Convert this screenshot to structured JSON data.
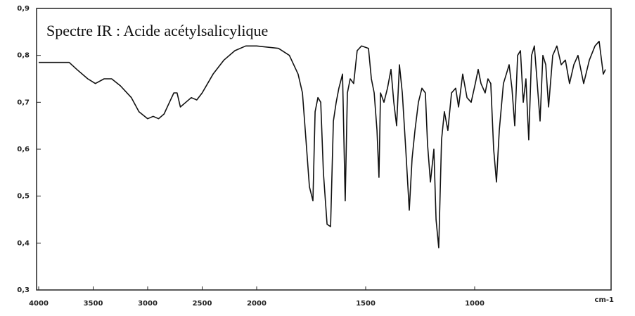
{
  "chart_data": {
    "type": "line",
    "annotation": "Spectre IR : Acide acétylsalicylique",
    "x_unit": "cm-1",
    "xlim": [
      4000,
      400
    ],
    "xticks": [
      4000,
      3500,
      3000,
      2500,
      2000,
      1500,
      1000
    ],
    "ylim": [
      0.3,
      0.9
    ],
    "yticks": [
      {
        "value": 0.3,
        "label": "0,3"
      },
      {
        "value": 0.4,
        "label": "0,4"
      },
      {
        "value": 0.5,
        "label": "0,5"
      },
      {
        "value": 0.6,
        "label": "0,6"
      },
      {
        "value": 0.7,
        "label": "0,7"
      },
      {
        "value": 0.8,
        "label": "0,8"
      },
      {
        "value": 0.9,
        "label": "0,9"
      }
    ],
    "color": "#111111",
    "x": [
      4000,
      3800,
      3720,
      3650,
      3550,
      3480,
      3400,
      3330,
      3250,
      3150,
      3080,
      3000,
      2950,
      2900,
      2850,
      2800,
      2760,
      2730,
      2700,
      2650,
      2600,
      2550,
      2500,
      2400,
      2300,
      2200,
      2100,
      2000,
      1900,
      1850,
      1810,
      1790,
      1774,
      1758,
      1742,
      1732,
      1719,
      1706,
      1694,
      1677,
      1661,
      1648,
      1635,
      1623,
      1606,
      1594,
      1584,
      1571,
      1555,
      1539,
      1519,
      1487,
      1474,
      1461,
      1448,
      1439,
      1432,
      1416,
      1400,
      1384,
      1371,
      1358,
      1345,
      1332,
      1316,
      1300,
      1287,
      1274,
      1258,
      1242,
      1226,
      1216,
      1203,
      1187,
      1177,
      1165,
      1152,
      1139,
      1123,
      1106,
      1087,
      1074,
      1055,
      1035,
      1016,
      997,
      984,
      971,
      952,
      939,
      926,
      913,
      900,
      887,
      868,
      855,
      842,
      829,
      816,
      803,
      790,
      777,
      765,
      752,
      739,
      726,
      713,
      700,
      687,
      674,
      661,
      642,
      623,
      603,
      584,
      565,
      545,
      526,
      500,
      474,
      448,
      429,
      410,
      400
    ],
    "values": [
      0.785,
      0.785,
      0.785,
      0.77,
      0.75,
      0.74,
      0.75,
      0.75,
      0.735,
      0.71,
      0.68,
      0.665,
      0.67,
      0.665,
      0.675,
      0.7,
      0.72,
      0.72,
      0.69,
      0.7,
      0.71,
      0.705,
      0.72,
      0.76,
      0.79,
      0.81,
      0.82,
      0.82,
      0.815,
      0.8,
      0.76,
      0.72,
      0.62,
      0.52,
      0.49,
      0.68,
      0.71,
      0.7,
      0.55,
      0.44,
      0.435,
      0.66,
      0.7,
      0.73,
      0.76,
      0.49,
      0.72,
      0.75,
      0.74,
      0.81,
      0.82,
      0.815,
      0.75,
      0.72,
      0.64,
      0.54,
      0.72,
      0.7,
      0.73,
      0.77,
      0.7,
      0.65,
      0.78,
      0.72,
      0.6,
      0.47,
      0.58,
      0.64,
      0.7,
      0.73,
      0.72,
      0.61,
      0.53,
      0.6,
      0.45,
      0.39,
      0.62,
      0.68,
      0.64,
      0.72,
      0.73,
      0.69,
      0.76,
      0.71,
      0.7,
      0.74,
      0.77,
      0.74,
      0.72,
      0.75,
      0.74,
      0.6,
      0.53,
      0.64,
      0.74,
      0.76,
      0.78,
      0.73,
      0.65,
      0.8,
      0.81,
      0.7,
      0.75,
      0.62,
      0.8,
      0.82,
      0.74,
      0.66,
      0.8,
      0.78,
      0.69,
      0.8,
      0.82,
      0.78,
      0.79,
      0.74,
      0.78,
      0.8,
      0.74,
      0.79,
      0.82,
      0.83,
      0.76,
      0.77
    ]
  }
}
